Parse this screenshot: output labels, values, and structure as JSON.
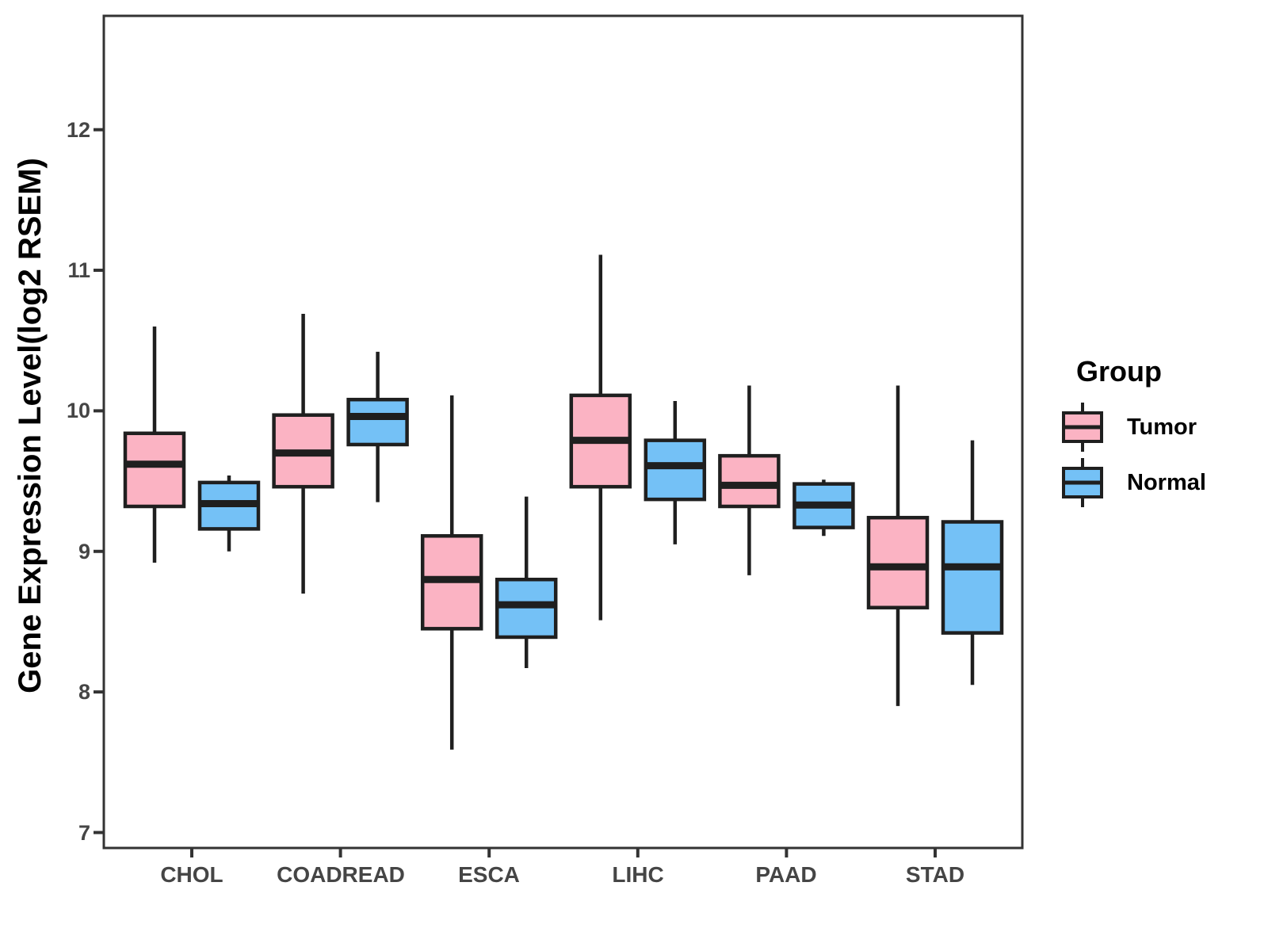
{
  "chart_data": {
    "type": "boxplot",
    "title": "",
    "ylabel": "Gene Expression Level(log2 RSEM)",
    "xlabel": "",
    "ylim": [
      6.89,
      12.81
    ],
    "y_ticks": [
      7,
      8,
      9,
      10,
      11,
      12
    ],
    "categories": [
      "CHOL",
      "COADREAD",
      "ESCA",
      "LIHC",
      "PAAD",
      "STAD"
    ],
    "legend": {
      "title": "Group",
      "position": "right"
    },
    "series": [
      {
        "name": "Tumor",
        "color": "#FBB3C3",
        "boxes": [
          {
            "whisker_low": 8.92,
            "q1": 9.32,
            "median": 9.62,
            "q3": 9.84,
            "whisker_high": 10.6
          },
          {
            "whisker_low": 8.7,
            "q1": 9.46,
            "median": 9.7,
            "q3": 9.97,
            "whisker_high": 10.69
          },
          {
            "whisker_low": 7.59,
            "q1": 8.45,
            "median": 8.8,
            "q3": 9.11,
            "whisker_high": 10.11
          },
          {
            "whisker_low": 8.51,
            "q1": 9.46,
            "median": 9.79,
            "q3": 10.11,
            "whisker_high": 11.11
          },
          {
            "whisker_low": 8.83,
            "q1": 9.32,
            "median": 9.47,
            "q3": 9.68,
            "whisker_high": 10.18
          },
          {
            "whisker_low": 7.9,
            "q1": 8.6,
            "median": 8.89,
            "q3": 9.24,
            "whisker_high": 10.18
          }
        ]
      },
      {
        "name": "Normal",
        "color": "#74C1F6",
        "boxes": [
          {
            "whisker_low": 9.0,
            "q1": 9.16,
            "median": 9.34,
            "q3": 9.49,
            "whisker_high": 9.54
          },
          {
            "whisker_low": 9.35,
            "q1": 9.76,
            "median": 9.96,
            "q3": 10.08,
            "whisker_high": 10.42
          },
          {
            "whisker_low": 8.17,
            "q1": 8.39,
            "median": 8.62,
            "q3": 8.8,
            "whisker_high": 9.39
          },
          {
            "whisker_low": 9.05,
            "q1": 9.37,
            "median": 9.61,
            "q3": 9.79,
            "whisker_high": 10.07
          },
          {
            "whisker_low": 9.11,
            "q1": 9.17,
            "median": 9.33,
            "q3": 9.48,
            "whisker_high": 9.51
          },
          {
            "whisker_low": 8.05,
            "q1": 8.42,
            "median": 8.89,
            "q3": 9.21,
            "whisker_high": 9.79
          }
        ]
      }
    ],
    "colors": {
      "box_border": "#1F1F1F",
      "axis": "#333333",
      "tick_label": "#454545",
      "background": "#FFFFFF"
    }
  }
}
